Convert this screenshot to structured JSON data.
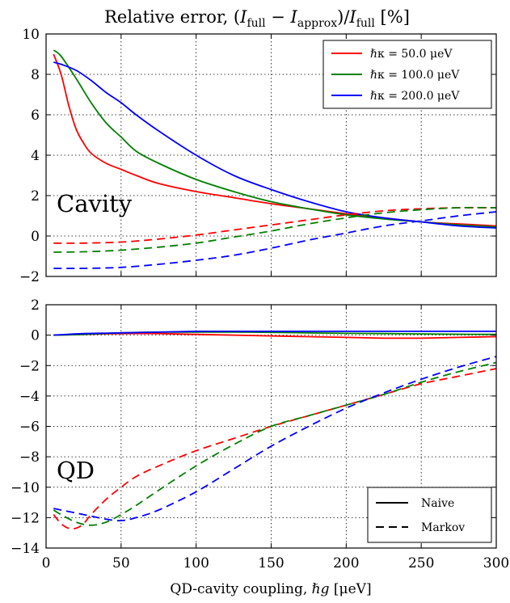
{
  "chart_data": {
    "type": "line",
    "title": "Relative error, (I_full − I_approx)/I_full [%]",
    "title_parts": {
      "prefix": "Relative error, (",
      "i1": "I",
      "sub1": "full",
      "minus": " − ",
      "i2": "I",
      "sub2": "approx",
      "slash": ")/",
      "i3": "I",
      "sub3": "full",
      "suffix": " [%]"
    },
    "xlabel": "QD-cavity coupling, ℏg [μeV]",
    "xlabel_parts": {
      "prefix": "QD-cavity coupling, ",
      "hbar": "ℏ",
      "g": "g",
      "suffix": " [μeV]"
    },
    "xlim": [
      0,
      300
    ],
    "xticks": [
      0,
      50,
      100,
      150,
      200,
      250,
      300
    ],
    "grid": true,
    "colors": {
      "kappa_50": "#ff0000",
      "kappa_100": "#008000",
      "kappa_200": "#0000ff"
    },
    "legend_kappa": {
      "placement": "top-right",
      "entries": [
        {
          "label": "ℏκ = 50.0 μeV",
          "color": "#ff0000"
        },
        {
          "label": "ℏκ = 100.0 μeV",
          "color": "#008000"
        },
        {
          "label": "ℏκ = 200.0 μeV",
          "color": "#0000ff"
        }
      ]
    },
    "legend_method": {
      "placement": "bottom-right",
      "entries": [
        {
          "label": "Naive",
          "style": "solid"
        },
        {
          "label": "Markov",
          "style": "dashed"
        }
      ]
    },
    "panels": [
      {
        "label": "Cavity",
        "ylim": [
          -2,
          10
        ],
        "yticks": [
          -2,
          0,
          2,
          4,
          6,
          8,
          10
        ],
        "series": [
          {
            "kappa": "50.0",
            "method": "Naive",
            "style": "solid",
            "color": "#ff0000",
            "x": [
              5,
              10,
              15,
              20,
              25,
              30,
              40,
              50,
              60,
              75,
              100,
              125,
              150,
              175,
              200,
              225,
              250,
              275,
              300
            ],
            "y": [
              9.0,
              8.0,
              6.5,
              5.3,
              4.6,
              4.1,
              3.6,
              3.3,
              3.0,
              2.6,
              2.2,
              1.9,
              1.6,
              1.35,
              1.1,
              0.9,
              0.7,
              0.6,
              0.5
            ]
          },
          {
            "kappa": "100.0",
            "method": "Naive",
            "style": "solid",
            "color": "#008000",
            "x": [
              5,
              10,
              20,
              30,
              40,
              50,
              60,
              75,
              100,
              125,
              150,
              175,
              200,
              225,
              250,
              275,
              300
            ],
            "y": [
              9.2,
              8.9,
              7.8,
              6.6,
              5.6,
              4.9,
              4.2,
              3.6,
              2.8,
              2.2,
              1.7,
              1.35,
              1.05,
              0.85,
              0.7,
              0.55,
              0.45
            ]
          },
          {
            "kappa": "200.0",
            "method": "Naive",
            "style": "solid",
            "color": "#0000ff",
            "x": [
              5,
              10,
              20,
              30,
              40,
              50,
              60,
              75,
              100,
              125,
              150,
              175,
              200,
              225,
              250,
              275,
              300
            ],
            "y": [
              8.6,
              8.5,
              8.2,
              7.7,
              7.1,
              6.6,
              6.0,
              5.2,
              4.0,
              3.0,
              2.3,
              1.7,
              1.2,
              0.9,
              0.7,
              0.5,
              0.4
            ]
          },
          {
            "kappa": "50.0",
            "method": "Markov",
            "style": "dashed",
            "color": "#ff0000",
            "x": [
              5,
              25,
              50,
              75,
              100,
              125,
              150,
              175,
              200,
              225,
              250,
              275,
              300
            ],
            "y": [
              -0.35,
              -0.35,
              -0.3,
              -0.15,
              0.05,
              0.3,
              0.55,
              0.8,
              1.05,
              1.25,
              1.35,
              1.4,
              1.4
            ]
          },
          {
            "kappa": "100.0",
            "method": "Markov",
            "style": "dashed",
            "color": "#008000",
            "x": [
              5,
              25,
              50,
              75,
              100,
              125,
              150,
              175,
              200,
              225,
              250,
              275,
              300
            ],
            "y": [
              -0.8,
              -0.78,
              -0.7,
              -0.55,
              -0.35,
              -0.05,
              0.25,
              0.6,
              0.9,
              1.15,
              1.3,
              1.4,
              1.4
            ]
          },
          {
            "kappa": "200.0",
            "method": "Markov",
            "style": "dashed",
            "color": "#0000ff",
            "x": [
              5,
              25,
              50,
              75,
              100,
              125,
              150,
              175,
              200,
              225,
              250,
              275,
              300
            ],
            "y": [
              -1.6,
              -1.6,
              -1.55,
              -1.4,
              -1.2,
              -0.95,
              -0.6,
              -0.2,
              0.15,
              0.5,
              0.75,
              1.0,
              1.2
            ]
          }
        ]
      },
      {
        "label": "QD",
        "ylim": [
          -14,
          2
        ],
        "yticks": [
          -14,
          -12,
          -10,
          -8,
          -6,
          -4,
          -2,
          0,
          2
        ],
        "series": [
          {
            "kappa": "50.0",
            "method": "Naive",
            "style": "solid",
            "color": "#ff0000",
            "x": [
              5,
              25,
              50,
              75,
              100,
              125,
              150,
              175,
              200,
              225,
              250,
              275,
              300
            ],
            "y": [
              0.0,
              0.05,
              0.1,
              0.1,
              0.05,
              0.0,
              -0.05,
              -0.1,
              -0.15,
              -0.2,
              -0.2,
              -0.15,
              -0.1
            ]
          },
          {
            "kappa": "100.0",
            "method": "Naive",
            "style": "solid",
            "color": "#008000",
            "x": [
              5,
              25,
              50,
              75,
              100,
              125,
              150,
              175,
              200,
              225,
              250,
              275,
              300
            ],
            "y": [
              0.0,
              0.05,
              0.15,
              0.2,
              0.2,
              0.2,
              0.18,
              0.15,
              0.12,
              0.1,
              0.08,
              0.06,
              0.05
            ]
          },
          {
            "kappa": "200.0",
            "method": "Naive",
            "style": "solid",
            "color": "#0000ff",
            "x": [
              5,
              25,
              50,
              75,
              100,
              125,
              150,
              175,
              200,
              225,
              250,
              275,
              300
            ],
            "y": [
              0.0,
              0.1,
              0.15,
              0.2,
              0.25,
              0.25,
              0.25,
              0.25,
              0.25,
              0.25,
              0.25,
              0.25,
              0.25
            ]
          },
          {
            "kappa": "50.0",
            "method": "Markov",
            "style": "dashed",
            "color": "#ff0000",
            "x": [
              5,
              10,
              15,
              20,
              25,
              30,
              40,
              50,
              60,
              75,
              100,
              125,
              150,
              175,
              200,
              225,
              250,
              275,
              300
            ],
            "y": [
              -11.8,
              -12.4,
              -12.7,
              -12.7,
              -12.4,
              -11.8,
              -10.8,
              -10.0,
              -9.3,
              -8.6,
              -7.6,
              -6.8,
              -6.0,
              -5.3,
              -4.6,
              -3.9,
              -3.2,
              -2.7,
              -2.2
            ]
          },
          {
            "kappa": "100.0",
            "method": "Markov",
            "style": "dashed",
            "color": "#008000",
            "x": [
              5,
              10,
              20,
              30,
              40,
              50,
              60,
              75,
              100,
              125,
              150,
              175,
              200,
              225,
              250,
              275,
              300
            ],
            "y": [
              -11.5,
              -11.8,
              -12.3,
              -12.5,
              -12.3,
              -11.8,
              -11.2,
              -10.2,
              -8.6,
              -7.2,
              -6.0,
              -5.3,
              -4.6,
              -3.9,
              -3.1,
              -2.4,
              -1.8
            ]
          },
          {
            "kappa": "200.0",
            "method": "Markov",
            "style": "dashed",
            "color": "#0000ff",
            "x": [
              5,
              10,
              20,
              30,
              40,
              50,
              60,
              75,
              100,
              125,
              150,
              175,
              200,
              225,
              250,
              275,
              300
            ],
            "y": [
              -11.4,
              -11.5,
              -11.7,
              -11.9,
              -12.1,
              -12.2,
              -12.0,
              -11.5,
              -10.3,
              -8.8,
              -7.3,
              -6.0,
              -4.8,
              -3.8,
              -2.9,
              -2.1,
              -1.4
            ]
          }
        ]
      }
    ]
  }
}
